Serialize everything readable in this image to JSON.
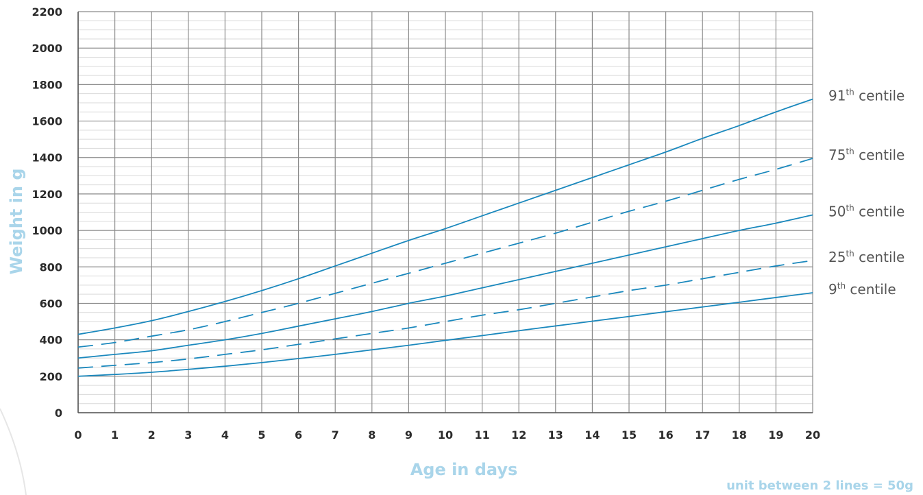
{
  "chart_data": {
    "type": "line",
    "xlabel": "Age in days",
    "ylabel": "Weight in g",
    "note": "unit between 2 lines = 50g",
    "xlim": [
      0,
      20
    ],
    "ylim": [
      0,
      2200
    ],
    "x_ticks": [
      "0",
      "1",
      "2",
      "3",
      "4",
      "5",
      "6",
      "7",
      "8",
      "9",
      "10",
      "11",
      "12",
      "13",
      "14",
      "15",
      "16",
      "17",
      "18",
      "19",
      "20"
    ],
    "y_ticks": [
      "0",
      "200",
      "400",
      "600",
      "800",
      "1000",
      "1200",
      "1400",
      "1600",
      "1800",
      "2000",
      "2200"
    ],
    "minor_y_step": 50,
    "grid": true,
    "line_color": "#1a88bd",
    "x": [
      0,
      1,
      2,
      3,
      4,
      5,
      6,
      7,
      8,
      9,
      10,
      11,
      12,
      13,
      14,
      15,
      16,
      17,
      18,
      19,
      20
    ],
    "series": [
      {
        "name_num": "91",
        "name_sup": "th",
        "name_rest": " centile",
        "style": "solid",
        "values": [
          430,
          465,
          505,
          555,
          610,
          670,
          735,
          805,
          875,
          945,
          1010,
          1080,
          1150,
          1220,
          1290,
          1360,
          1430,
          1505,
          1575,
          1650,
          1720
        ]
      },
      {
        "name_num": "75",
        "name_sup": "th",
        "name_rest": " centile",
        "style": "dashed",
        "values": [
          360,
          385,
          420,
          455,
          500,
          550,
          600,
          655,
          710,
          765,
          820,
          875,
          930,
          985,
          1045,
          1105,
          1160,
          1220,
          1280,
          1335,
          1395
        ]
      },
      {
        "name_num": "50",
        "name_sup": "th",
        "name_rest": " centile",
        "style": "solid",
        "values": [
          300,
          320,
          340,
          370,
          400,
          435,
          475,
          515,
          555,
          600,
          640,
          685,
          730,
          775,
          820,
          865,
          910,
          955,
          1000,
          1040,
          1085
        ]
      },
      {
        "name_num": "25",
        "name_sup": "th",
        "name_rest": " centile",
        "style": "dashed",
        "values": [
          245,
          260,
          275,
          295,
          320,
          345,
          375,
          405,
          435,
          465,
          500,
          535,
          565,
          600,
          635,
          670,
          700,
          735,
          770,
          805,
          835
        ]
      },
      {
        "name_num": "9",
        "name_sup": "th",
        "name_rest": " centile",
        "style": "solid",
        "values": [
          200,
          210,
          222,
          238,
          255,
          275,
          297,
          320,
          345,
          370,
          397,
          423,
          450,
          476,
          502,
          528,
          554,
          580,
          606,
          632,
          658
        ]
      }
    ]
  }
}
